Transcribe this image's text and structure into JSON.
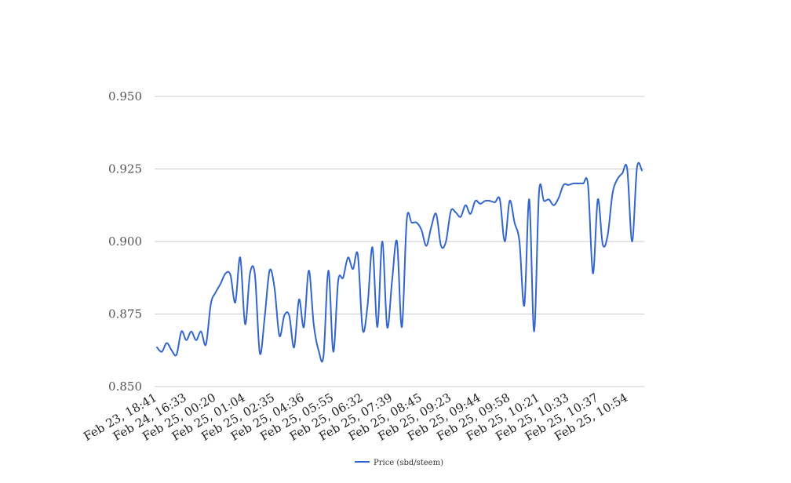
{
  "chart_data": {
    "type": "line",
    "title": "",
    "xlabel": "",
    "ylabel": "",
    "ylim": [
      0.85,
      0.95
    ],
    "yticks": [
      "0.850",
      "0.875",
      "0.900",
      "0.925",
      "0.950"
    ],
    "xticks": [
      "Feb 23, 18:41",
      "Feb 24, 16:33",
      "Feb 25, 00:20",
      "Feb 25, 01:04",
      "Feb 25, 02:35",
      "Feb 25, 04:36",
      "Feb 25, 05:55",
      "Feb 25, 06:32",
      "Feb 25, 07:39",
      "Feb 25, 08:45",
      "Feb 25, 09:23",
      "Feb 25, 09:44",
      "Feb 25, 09:58",
      "Feb 25, 10:21",
      "Feb 25, 10:33",
      "Feb 25, 10:37",
      "Feb 25, 10:54"
    ],
    "grid": true,
    "legend_position": "bottom",
    "series": [
      {
        "name": "Price (sbd/steem)",
        "color": "#3366cc",
        "values": [
          0.8635,
          0.862,
          0.865,
          0.8625,
          0.861,
          0.869,
          0.866,
          0.869,
          0.866,
          0.869,
          0.8645,
          0.8785,
          0.8825,
          0.8855,
          0.889,
          0.8885,
          0.879,
          0.8945,
          0.8715,
          0.889,
          0.8885,
          0.8615,
          0.874,
          0.89,
          0.884,
          0.8675,
          0.8745,
          0.8745,
          0.8635,
          0.88,
          0.8705,
          0.89,
          0.8715,
          0.8625,
          0.8605,
          0.89,
          0.862,
          0.8865,
          0.8875,
          0.8945,
          0.8905,
          0.8955,
          0.8695,
          0.878,
          0.898,
          0.8705,
          0.9,
          0.8705,
          0.8865,
          0.9,
          0.8705,
          0.9075,
          0.9065,
          0.9065,
          0.904,
          0.8985,
          0.905,
          0.9095,
          0.8985,
          0.9,
          0.9105,
          0.91,
          0.9085,
          0.9125,
          0.9095,
          0.914,
          0.913,
          0.914,
          0.914,
          0.9135,
          0.9145,
          0.9,
          0.914,
          0.9065,
          0.9,
          0.878,
          0.9145,
          0.869,
          0.917,
          0.914,
          0.9145,
          0.9125,
          0.915,
          0.9195,
          0.9195,
          0.92,
          0.92,
          0.92,
          0.9195,
          0.889,
          0.9145,
          0.899,
          0.902,
          0.9165,
          0.9215,
          0.9235,
          0.925,
          0.9,
          0.9255,
          0.9245
        ]
      }
    ]
  }
}
